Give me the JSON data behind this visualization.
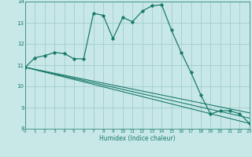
{
  "xlabel": "Humidex (Indice chaleur)",
  "bg_color": "#c8e8e8",
  "grid_color": "#a8d0d0",
  "line_color": "#1a7a6a",
  "xlim": [
    0,
    23
  ],
  "ylim": [
    8,
    14
  ],
  "yticks": [
    8,
    9,
    10,
    11,
    12,
    13,
    14
  ],
  "xticks": [
    0,
    1,
    2,
    3,
    4,
    5,
    6,
    7,
    8,
    9,
    10,
    11,
    12,
    13,
    14,
    15,
    16,
    17,
    18,
    19,
    20,
    21,
    22,
    23
  ],
  "series": [
    {
      "x": [
        0,
        1,
        2,
        3,
        4,
        5,
        6,
        7,
        8,
        9,
        10,
        11,
        12,
        13,
        14,
        15,
        16,
        17,
        18,
        19,
        20,
        21,
        22,
        23
      ],
      "y": [
        10.9,
        11.35,
        11.45,
        11.6,
        11.55,
        11.3,
        11.3,
        13.45,
        13.35,
        12.25,
        13.25,
        13.05,
        13.55,
        13.8,
        13.85,
        12.65,
        11.6,
        10.65,
        9.6,
        8.7,
        8.85,
        8.85,
        8.7,
        8.25
      ],
      "has_markers": true
    },
    {
      "x": [
        0,
        23
      ],
      "y": [
        10.9,
        8.25
      ],
      "has_markers": false
    },
    {
      "x": [
        0,
        23
      ],
      "y": [
        10.9,
        8.5
      ],
      "has_markers": false
    },
    {
      "x": [
        0,
        23
      ],
      "y": [
        10.9,
        8.75
      ],
      "has_markers": false
    }
  ]
}
